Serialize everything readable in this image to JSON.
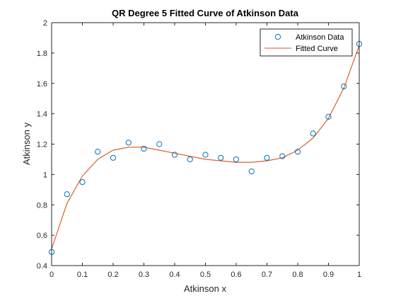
{
  "chart_data": {
    "type": "scatter",
    "title": "QR Degree 5 Fitted Curve of Atkinson Data",
    "xlabel": "Atkinson x",
    "ylabel": "Atkinson y",
    "xlim": [
      0,
      1
    ],
    "ylim": [
      0.4,
      2
    ],
    "x_ticks": [
      0,
      0.1,
      0.2,
      0.3,
      0.4,
      0.5,
      0.6,
      0.7,
      0.8,
      0.9,
      1
    ],
    "x_tick_labels": [
      "0",
      "0.1",
      "0.2",
      "0.3",
      "0.4",
      "0.5",
      "0.6",
      "0.7",
      "0.8",
      "0.9",
      "1"
    ],
    "y_ticks": [
      0.4,
      0.6,
      0.8,
      1,
      1.2,
      1.4,
      1.6,
      1.8,
      2
    ],
    "y_tick_labels": [
      "0.4",
      "0.6",
      "0.8",
      "1",
      "1.2",
      "1.4",
      "1.6",
      "1.8",
      "2"
    ],
    "grid": false,
    "legend_position": "top-right",
    "series": [
      {
        "name": "Atkinson Data",
        "kind": "markers",
        "marker": "circle",
        "color": "#0072BD",
        "x": [
          0,
          0.05,
          0.1,
          0.15,
          0.2,
          0.25,
          0.3,
          0.35,
          0.4,
          0.45,
          0.5,
          0.55,
          0.6,
          0.65,
          0.7,
          0.75,
          0.8,
          0.85,
          0.9,
          0.95,
          1
        ],
        "y": [
          0.49,
          0.87,
          0.95,
          1.15,
          1.11,
          1.21,
          1.17,
          1.2,
          1.13,
          1.1,
          1.13,
          1.11,
          1.1,
          1.02,
          1.11,
          1.12,
          1.15,
          1.27,
          1.38,
          1.58,
          1.86
        ]
      },
      {
        "name": "Fitted Curve",
        "kind": "line",
        "color": "#D95319",
        "x": [
          0,
          0.05,
          0.1,
          0.15,
          0.2,
          0.25,
          0.3,
          0.35,
          0.4,
          0.45,
          0.5,
          0.55,
          0.6,
          0.65,
          0.7,
          0.75,
          0.8,
          0.85,
          0.9,
          0.95,
          1
        ],
        "y": [
          0.51,
          0.81,
          0.99,
          1.1,
          1.16,
          1.18,
          1.18,
          1.16,
          1.14,
          1.12,
          1.1,
          1.09,
          1.08,
          1.08,
          1.09,
          1.11,
          1.16,
          1.24,
          1.37,
          1.57,
          1.85
        ]
      }
    ]
  }
}
